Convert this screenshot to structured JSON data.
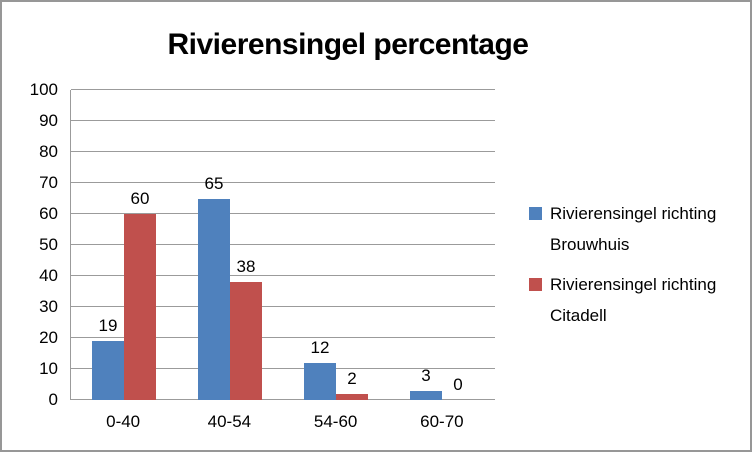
{
  "chart_data": {
    "type": "bar",
    "title": "Rivierensingel percentage",
    "categories": [
      "0-40",
      "40-54",
      "54-60",
      "60-70"
    ],
    "series": [
      {
        "name": "Rivierensingel richting Brouwhuis",
        "color": "#4F81BD",
        "values": [
          19,
          65,
          12,
          3
        ]
      },
      {
        "name": "Rivierensingel richting Citadell",
        "color": "#C0504D",
        "values": [
          60,
          38,
          2,
          0
        ]
      }
    ],
    "xlabel": "",
    "ylabel": "",
    "ylim": [
      0,
      100
    ],
    "ytick_step": 10,
    "ytick_labels": [
      "0",
      "10",
      "20",
      "30",
      "40",
      "50",
      "60",
      "70",
      "80",
      "90",
      "100"
    ],
    "grid": "horizontal",
    "gridline_color": "#9b9b9b",
    "data_labels": true,
    "legend_position": "right"
  }
}
